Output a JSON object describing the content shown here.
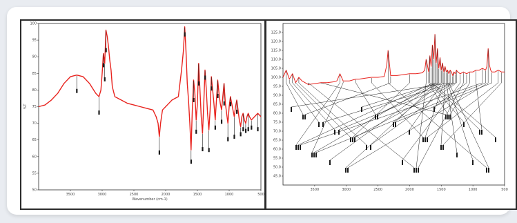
{
  "colors": {
    "spectrum": "#e8231e",
    "axis": "#2b2b2b",
    "callout": "#1a1a1a"
  },
  "chart_data": [
    {
      "type": "line",
      "title": "",
      "xlabel": "Wavenumber (cm-1)",
      "ylabel": "%T",
      "xlim": [
        4000,
        500
      ],
      "ylim": [
        50,
        100
      ],
      "x_ticks": [
        "3500",
        "3000",
        "2500",
        "2000",
        "1500",
        "1000",
        "500"
      ],
      "y_ticks": [
        "100",
        "95",
        "90",
        "85",
        "80",
        "75",
        "70",
        "65",
        "60",
        "55",
        "50"
      ],
      "grid": false,
      "series": [
        {
          "x": [
            4000,
            3900,
            3800,
            3700,
            3600,
            3500,
            3400,
            3300,
            3200,
            3100,
            3050,
            3020,
            3000,
            2980,
            2960,
            2940,
            2920,
            2900,
            2880,
            2860,
            2840,
            2800,
            2700,
            2600,
            2500,
            2400,
            2300,
            2200,
            2150,
            2120,
            2100,
            2080,
            2050,
            2000,
            1950,
            1900,
            1850,
            1800,
            1750,
            1720,
            1700,
            1680,
            1660,
            1640,
            1620,
            1600,
            1580,
            1560,
            1540,
            1520,
            1500,
            1480,
            1460,
            1440,
            1420,
            1400,
            1380,
            1360,
            1340,
            1320,
            1300,
            1280,
            1260,
            1240,
            1220,
            1200,
            1180,
            1160,
            1140,
            1120,
            1100,
            1080,
            1060,
            1040,
            1020,
            1000,
            980,
            960,
            940,
            920,
            900,
            880,
            860,
            840,
            820,
            800,
            780,
            760,
            740,
            720,
            700,
            680,
            650,
            600,
            550,
            500
          ],
          "y": [
            75,
            75.5,
            77,
            79,
            82,
            84,
            84.5,
            84,
            82,
            79,
            78,
            80,
            85,
            91,
            88,
            98,
            96,
            93,
            89,
            86,
            81,
            78,
            77,
            76,
            75.5,
            75,
            74.5,
            74,
            72,
            70,
            66,
            70,
            74,
            75,
            76,
            77,
            77.5,
            78,
            86,
            92,
            99,
            92,
            82,
            77,
            70,
            62,
            74,
            83,
            79,
            71,
            76,
            88,
            80,
            72,
            67,
            76,
            86,
            80,
            73,
            68,
            74,
            84,
            80,
            76,
            71,
            77,
            83,
            79,
            76,
            74,
            78,
            82,
            76,
            73,
            70,
            75,
            78,
            76,
            74,
            72,
            75,
            77,
            74,
            71,
            69,
            72,
            73,
            71,
            70,
            72,
            73,
            72,
            71,
            72,
            73,
            72
          ]
        }
      ]
    },
    {
      "type": "line",
      "title": "",
      "xlabel": "",
      "ylabel": "",
      "xlim": [
        4000,
        500
      ],
      "ylim": [
        40,
        130
      ],
      "x_ticks": [
        "3500",
        "3000",
        "2500",
        "2000",
        "1500",
        "1000",
        "500"
      ],
      "y_ticks": [
        "125.0",
        "120.0",
        "115.0",
        "110.0",
        "105.0",
        "100.0",
        "95.0",
        "90.0",
        "85.0",
        "80.0",
        "75.0",
        "70.0",
        "65.0",
        "60.0",
        "55.0",
        "50.0",
        "45.0"
      ],
      "grid": false,
      "series": [
        {
          "x": [
            4000,
            3950,
            3900,
            3850,
            3800,
            3750,
            3700,
            3650,
            3600,
            3500,
            3400,
            3300,
            3200,
            3150,
            3100,
            3050,
            3000,
            2950,
            2900,
            2850,
            2800,
            2700,
            2600,
            2500,
            2400,
            2360,
            2340,
            2320,
            2300,
            2200,
            2100,
            2000,
            1900,
            1800,
            1760,
            1740,
            1720,
            1700,
            1680,
            1660,
            1640,
            1620,
            1600,
            1580,
            1560,
            1540,
            1520,
            1500,
            1480,
            1460,
            1440,
            1420,
            1400,
            1380,
            1360,
            1340,
            1320,
            1300,
            1280,
            1260,
            1240,
            1200,
            1150,
            1100,
            1050,
            1000,
            950,
            900,
            850,
            800,
            780,
            760,
            740,
            720,
            700,
            650,
            600,
            550,
            500
          ],
          "y": [
            100,
            104,
            99,
            102,
            97,
            100,
            98,
            97,
            96,
            96.5,
            97,
            97,
            97.5,
            98,
            102,
            98,
            98,
            98,
            98.5,
            99,
            99,
            99.5,
            100,
            100,
            100.5,
            107,
            115,
            108,
            101,
            101,
            101.5,
            102,
            102,
            102.5,
            104,
            110,
            107,
            103,
            112,
            106,
            118,
            110,
            124,
            108,
            116,
            105,
            111,
            104,
            108,
            103,
            106,
            103,
            104,
            102,
            104,
            103,
            101,
            103,
            102,
            104,
            103,
            102,
            103,
            102,
            103,
            103,
            104,
            104,
            105,
            104,
            106,
            116,
            107,
            104,
            103,
            103,
            104,
            103,
            103
          ]
        }
      ]
    }
  ]
}
